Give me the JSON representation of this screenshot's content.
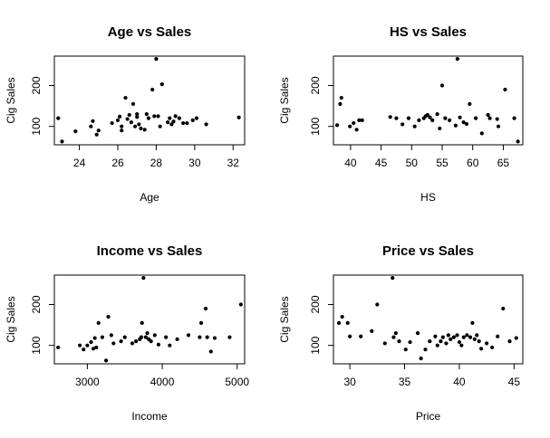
{
  "chart_data": [
    {
      "type": "scatter",
      "title": "Age vs Sales",
      "xlabel": "Age",
      "ylabel": "Cig Sales",
      "xlim": [
        22.7,
        32.6
      ],
      "ylim": [
        55,
        272
      ],
      "xticks": [
        24,
        26,
        28,
        30,
        32
      ],
      "yticks": [
        100,
        200
      ],
      "points": [
        [
          22.9,
          120
        ],
        [
          23.1,
          63
        ],
        [
          23.8,
          88
        ],
        [
          24.6,
          100
        ],
        [
          24.7,
          113
        ],
        [
          24.9,
          80
        ],
        [
          25.0,
          90
        ],
        [
          25.7,
          108
        ],
        [
          26.0,
          115
        ],
        [
          26.1,
          124
        ],
        [
          26.2,
          100
        ],
        [
          26.2,
          90
        ],
        [
          26.4,
          170
        ],
        [
          26.5,
          118
        ],
        [
          26.6,
          128
        ],
        [
          26.7,
          110
        ],
        [
          26.8,
          155
        ],
        [
          26.9,
          100
        ],
        [
          27.0,
          130
        ],
        [
          27.0,
          123
        ],
        [
          27.1,
          105
        ],
        [
          27.2,
          95
        ],
        [
          27.4,
          92
        ],
        [
          27.5,
          130
        ],
        [
          27.6,
          120
        ],
        [
          27.8,
          190
        ],
        [
          27.9,
          125
        ],
        [
          28.0,
          265
        ],
        [
          28.1,
          125
        ],
        [
          28.2,
          100
        ],
        [
          28.3,
          203
        ],
        [
          28.6,
          110
        ],
        [
          28.7,
          120
        ],
        [
          28.8,
          105
        ],
        [
          28.9,
          112
        ],
        [
          29.0,
          125
        ],
        [
          29.2,
          120
        ],
        [
          29.4,
          108
        ],
        [
          29.6,
          108
        ],
        [
          29.9,
          115
        ],
        [
          30.1,
          120
        ],
        [
          30.6,
          105
        ],
        [
          32.3,
          122
        ]
      ]
    },
    {
      "type": "scatter",
      "title": "HS vs Sales",
      "xlabel": "HS",
      "ylabel": "Cig Sales",
      "xlim": [
        37.2,
        68.2
      ],
      "ylim": [
        55,
        272
      ],
      "xticks": [
        40,
        45,
        50,
        55,
        60,
        65
      ],
      "yticks": [
        100,
        200
      ],
      "points": [
        [
          37.8,
          103
        ],
        [
          38.3,
          155
        ],
        [
          38.5,
          170
        ],
        [
          39.9,
          100
        ],
        [
          40.5,
          108
        ],
        [
          41.0,
          92
        ],
        [
          41.4,
          115
        ],
        [
          41.9,
          115
        ],
        [
          46.5,
          123
        ],
        [
          47.5,
          120
        ],
        [
          48.5,
          105
        ],
        [
          49.5,
          120
        ],
        [
          50.5,
          100
        ],
        [
          51.2,
          115
        ],
        [
          52.0,
          120
        ],
        [
          52.3,
          125
        ],
        [
          52.6,
          128
        ],
        [
          53.0,
          122
        ],
        [
          53.4,
          115
        ],
        [
          54.2,
          130
        ],
        [
          54.6,
          95
        ],
        [
          55.0,
          200
        ],
        [
          55.5,
          120
        ],
        [
          56.2,
          115
        ],
        [
          57.2,
          102
        ],
        [
          57.5,
          265
        ],
        [
          57.9,
          122
        ],
        [
          58.5,
          110
        ],
        [
          59.0,
          106
        ],
        [
          59.5,
          155
        ],
        [
          60.5,
          120
        ],
        [
          61.5,
          83
        ],
        [
          62.5,
          128
        ],
        [
          62.8,
          120
        ],
        [
          64.0,
          118
        ],
        [
          64.2,
          100
        ],
        [
          65.3,
          190
        ],
        [
          66.8,
          120
        ],
        [
          67.4,
          63
        ]
      ]
    },
    {
      "type": "scatter",
      "title": "Income vs Sales",
      "xlabel": "Income",
      "ylabel": "Cig Sales",
      "xlim": [
        2560,
        5100
      ],
      "ylim": [
        55,
        272
      ],
      "xticks": [
        3000,
        4000,
        5000
      ],
      "yticks": [
        100,
        200
      ],
      "points": [
        [
          2610,
          95
        ],
        [
          2900,
          100
        ],
        [
          2950,
          90
        ],
        [
          3000,
          100
        ],
        [
          3050,
          108
        ],
        [
          3080,
          92
        ],
        [
          3100,
          118
        ],
        [
          3120,
          95
        ],
        [
          3150,
          155
        ],
        [
          3200,
          120
        ],
        [
          3250,
          63
        ],
        [
          3280,
          170
        ],
        [
          3320,
          125
        ],
        [
          3350,
          105
        ],
        [
          3450,
          110
        ],
        [
          3500,
          120
        ],
        [
          3600,
          105
        ],
        [
          3650,
          110
        ],
        [
          3700,
          115
        ],
        [
          3720,
          120
        ],
        [
          3730,
          155
        ],
        [
          3750,
          265
        ],
        [
          3780,
          120
        ],
        [
          3800,
          130
        ],
        [
          3820,
          115
        ],
        [
          3850,
          110
        ],
        [
          3900,
          125
        ],
        [
          3950,
          102
        ],
        [
          4050,
          120
        ],
        [
          4100,
          100
        ],
        [
          4200,
          115
        ],
        [
          4350,
          125
        ],
        [
          4500,
          120
        ],
        [
          4520,
          155
        ],
        [
          4580,
          190
        ],
        [
          4600,
          120
        ],
        [
          4650,
          85
        ],
        [
          4700,
          118
        ],
        [
          4900,
          120
        ],
        [
          5050,
          200
        ]
      ]
    },
    {
      "type": "scatter",
      "title": "Price vs Sales",
      "xlabel": "Price",
      "ylabel": "Cig Sales",
      "xlim": [
        28.5,
        45.8
      ],
      "ylim": [
        55,
        272
      ],
      "xticks": [
        30,
        35,
        40,
        45
      ],
      "yticks": [
        100,
        200
      ],
      "points": [
        [
          29.0,
          155
        ],
        [
          29.3,
          170
        ],
        [
          29.8,
          155
        ],
        [
          30.0,
          122
        ],
        [
          31.0,
          122
        ],
        [
          32.0,
          135
        ],
        [
          32.5,
          200
        ],
        [
          33.2,
          105
        ],
        [
          33.9,
          265
        ],
        [
          34.0,
          120
        ],
        [
          34.2,
          130
        ],
        [
          34.5,
          110
        ],
        [
          35.1,
          90
        ],
        [
          35.5,
          108
        ],
        [
          36.2,
          130
        ],
        [
          36.5,
          68
        ],
        [
          36.9,
          90
        ],
        [
          37.3,
          110
        ],
        [
          37.8,
          122
        ],
        [
          38.0,
          100
        ],
        [
          38.3,
          110
        ],
        [
          38.5,
          120
        ],
        [
          38.8,
          105
        ],
        [
          39.0,
          125
        ],
        [
          39.2,
          115
        ],
        [
          39.5,
          120
        ],
        [
          39.8,
          125
        ],
        [
          40.0,
          108
        ],
        [
          40.2,
          100
        ],
        [
          40.4,
          120
        ],
        [
          40.7,
          125
        ],
        [
          41.0,
          120
        ],
        [
          41.2,
          155
        ],
        [
          41.4,
          115
        ],
        [
          41.6,
          125
        ],
        [
          41.8,
          110
        ],
        [
          42.0,
          92
        ],
        [
          42.5,
          105
        ],
        [
          43.0,
          95
        ],
        [
          43.5,
          122
        ],
        [
          44.0,
          190
        ],
        [
          44.6,
          110
        ],
        [
          45.2,
          118
        ]
      ]
    }
  ]
}
